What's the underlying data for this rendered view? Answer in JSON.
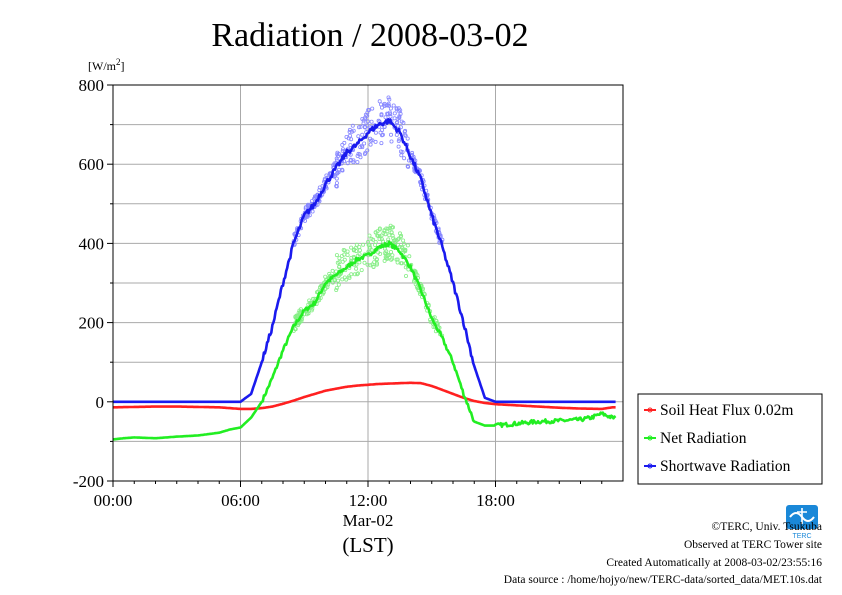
{
  "colors": {
    "soil": "#ff2020",
    "net": "#22ee22",
    "shortwave": "#1a1aee",
    "shortwave_points": "#8888ff",
    "net_points": "#88ee88",
    "grid": "#aaaaaa"
  },
  "chart_data": {
    "type": "line",
    "title": "Radiation / 2008-03-02",
    "ylabel": "[W/m",
    "ylabel_sup": "2",
    "ylabel_close": "]",
    "xlabel_date": "Mar-02",
    "xlabel_unit": "(LST)",
    "xlim": [
      0,
      24
    ],
    "ylim": [
      -200,
      800
    ],
    "y_ticks": [
      -200,
      0,
      200,
      400,
      600,
      800
    ],
    "y_tick_labels": [
      "-200",
      "0",
      "200",
      "400",
      "600",
      "800"
    ],
    "x_ticks": [
      0,
      6,
      12,
      18
    ],
    "x_tick_labels": [
      "00:00",
      "06:00",
      "12:00",
      "18:00"
    ],
    "grid": true,
    "legend_position": "right",
    "series": [
      {
        "name": "Soil Heat Flux 0.02m",
        "color_key": "soil",
        "x": [
          0,
          1,
          2,
          3,
          4,
          5,
          5.5,
          6,
          6.5,
          7,
          7.5,
          8,
          8.5,
          9,
          9.5,
          10,
          10.5,
          11,
          11.5,
          12,
          12.5,
          13,
          13.5,
          14,
          14.5,
          15,
          15.5,
          16,
          16.5,
          17,
          17.5,
          18,
          19,
          20,
          21,
          22,
          23,
          23.5
        ],
        "y": [
          -14,
          -13,
          -12,
          -12,
          -13,
          -14,
          -16,
          -18,
          -18,
          -16,
          -12,
          -5,
          3,
          12,
          20,
          28,
          33,
          38,
          41,
          43,
          45,
          46,
          47,
          48,
          47,
          40,
          30,
          20,
          10,
          2,
          -3,
          -6,
          -9,
          -12,
          -15,
          -17,
          -18,
          -14
        ]
      },
      {
        "name": "Net Radiation",
        "color_key": "net",
        "x": [
          0,
          0.5,
          1,
          2,
          3,
          4,
          5,
          5.5,
          6,
          6.5,
          7,
          7.5,
          8,
          8.5,
          9,
          9.5,
          10,
          10.5,
          11,
          11.5,
          12,
          12.5,
          13,
          13.5,
          14,
          14.5,
          15,
          15.5,
          16,
          16.5,
          17,
          17.5,
          18,
          19,
          20,
          21,
          22,
          22.5,
          23,
          23.5
        ],
        "y": [
          -95,
          -92,
          -90,
          -92,
          -88,
          -85,
          -78,
          -70,
          -65,
          -40,
          0,
          60,
          130,
          190,
          230,
          250,
          300,
          320,
          340,
          360,
          370,
          390,
          400,
          380,
          340,
          280,
          210,
          160,
          100,
          20,
          -50,
          -60,
          -60,
          -55,
          -50,
          -48,
          -45,
          -40,
          -30,
          -40
        ]
      },
      {
        "name": "Shortwave Radiation",
        "color_key": "shortwave",
        "x": [
          0,
          1,
          2,
          3,
          4,
          5,
          6,
          6.5,
          7,
          7.5,
          8,
          8.5,
          9,
          9.5,
          10,
          10.5,
          11,
          11.5,
          12,
          12.5,
          13,
          13.5,
          14,
          14.5,
          15,
          15.5,
          16,
          16.5,
          17,
          17.5,
          18,
          19,
          20,
          21,
          22,
          23,
          23.5
        ],
        "y": [
          0,
          0,
          0,
          0,
          0,
          0,
          0,
          20,
          100,
          190,
          300,
          400,
          470,
          500,
          550,
          590,
          630,
          650,
          680,
          700,
          710,
          680,
          620,
          560,
          470,
          390,
          300,
          200,
          90,
          10,
          0,
          0,
          0,
          0,
          0,
          0,
          0
        ]
      }
    ]
  },
  "legend": {
    "items": [
      {
        "label": "Soil Heat Flux 0.02m",
        "color_key": "soil"
      },
      {
        "label": "Net Radiation",
        "color_key": "net"
      },
      {
        "label": "Shortwave Radiation",
        "color_key": "shortwave"
      }
    ]
  },
  "footer": {
    "copyright": "©TERC, Univ. Tsukuba",
    "site": "Observed at TERC Tower site",
    "created": "Created Automatically at 2008-03-02/23:55:16",
    "source": "Data source : /home/hojyo/new/TERC-data/sorted_data/MET.10s.dat",
    "logo_text": "TERC"
  }
}
